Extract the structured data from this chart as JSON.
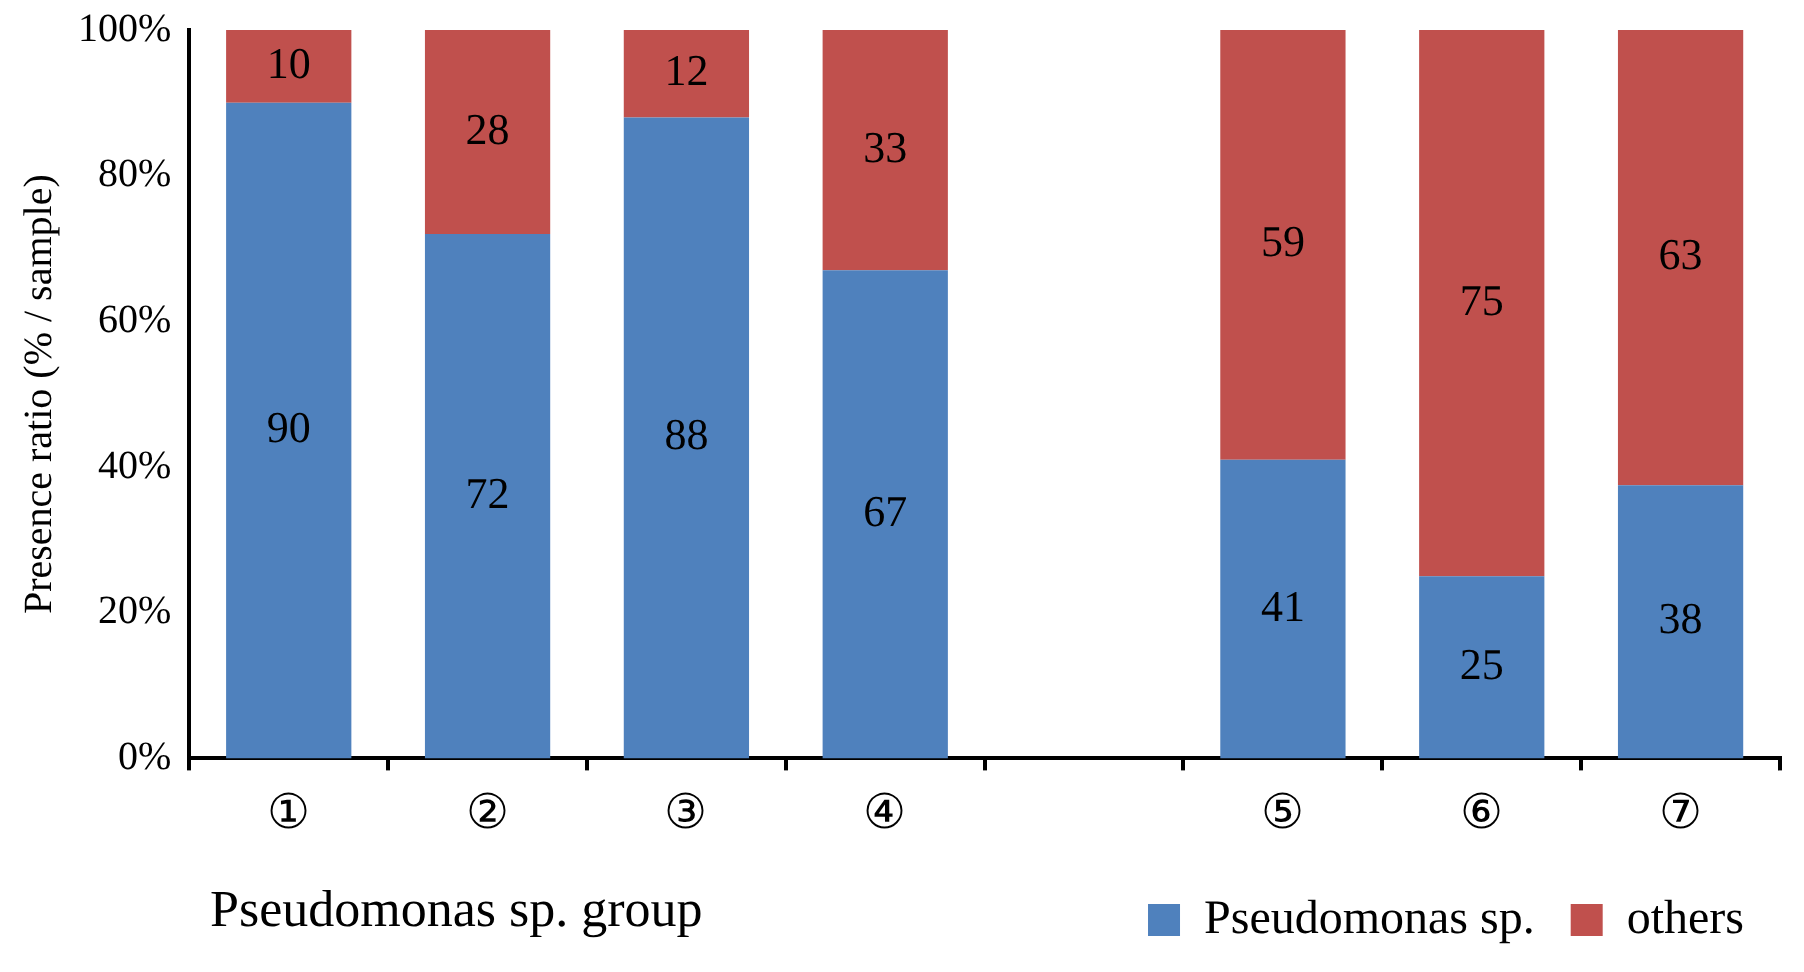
{
  "chart_data": {
    "type": "bar",
    "stacked": true,
    "ylabel": "Presence ratio (% / sample)",
    "xlabel": "Pseudomonas sp. group",
    "categories": [
      "①",
      "②",
      "③",
      "④",
      null,
      "⑤",
      "⑥",
      "⑦"
    ],
    "series": [
      {
        "name": "Pseudomonas sp.",
        "color": "#4f81bd",
        "values": [
          90,
          72,
          88,
          67,
          null,
          41,
          25,
          37.5
        ],
        "value_labels": [
          "90",
          "72",
          "88",
          "67",
          null,
          "41",
          "25",
          "38"
        ]
      },
      {
        "name": "others",
        "color": "#c0504d",
        "values": [
          10,
          28,
          12,
          33,
          null,
          59,
          75,
          62.5
        ],
        "value_labels": [
          "10",
          "28",
          "12",
          "33",
          null,
          "59",
          "75",
          "63"
        ]
      }
    ],
    "ylim": [
      0,
      100
    ],
    "yticks": [
      {
        "value": 0,
        "label": "0%"
      },
      {
        "value": 20,
        "label": "20%"
      },
      {
        "value": 40,
        "label": "40%"
      },
      {
        "value": 60,
        "label": "60%"
      },
      {
        "value": 80,
        "label": "80%"
      },
      {
        "value": 100,
        "label": "100%"
      }
    ],
    "grid": false,
    "legend": "bottom right"
  }
}
